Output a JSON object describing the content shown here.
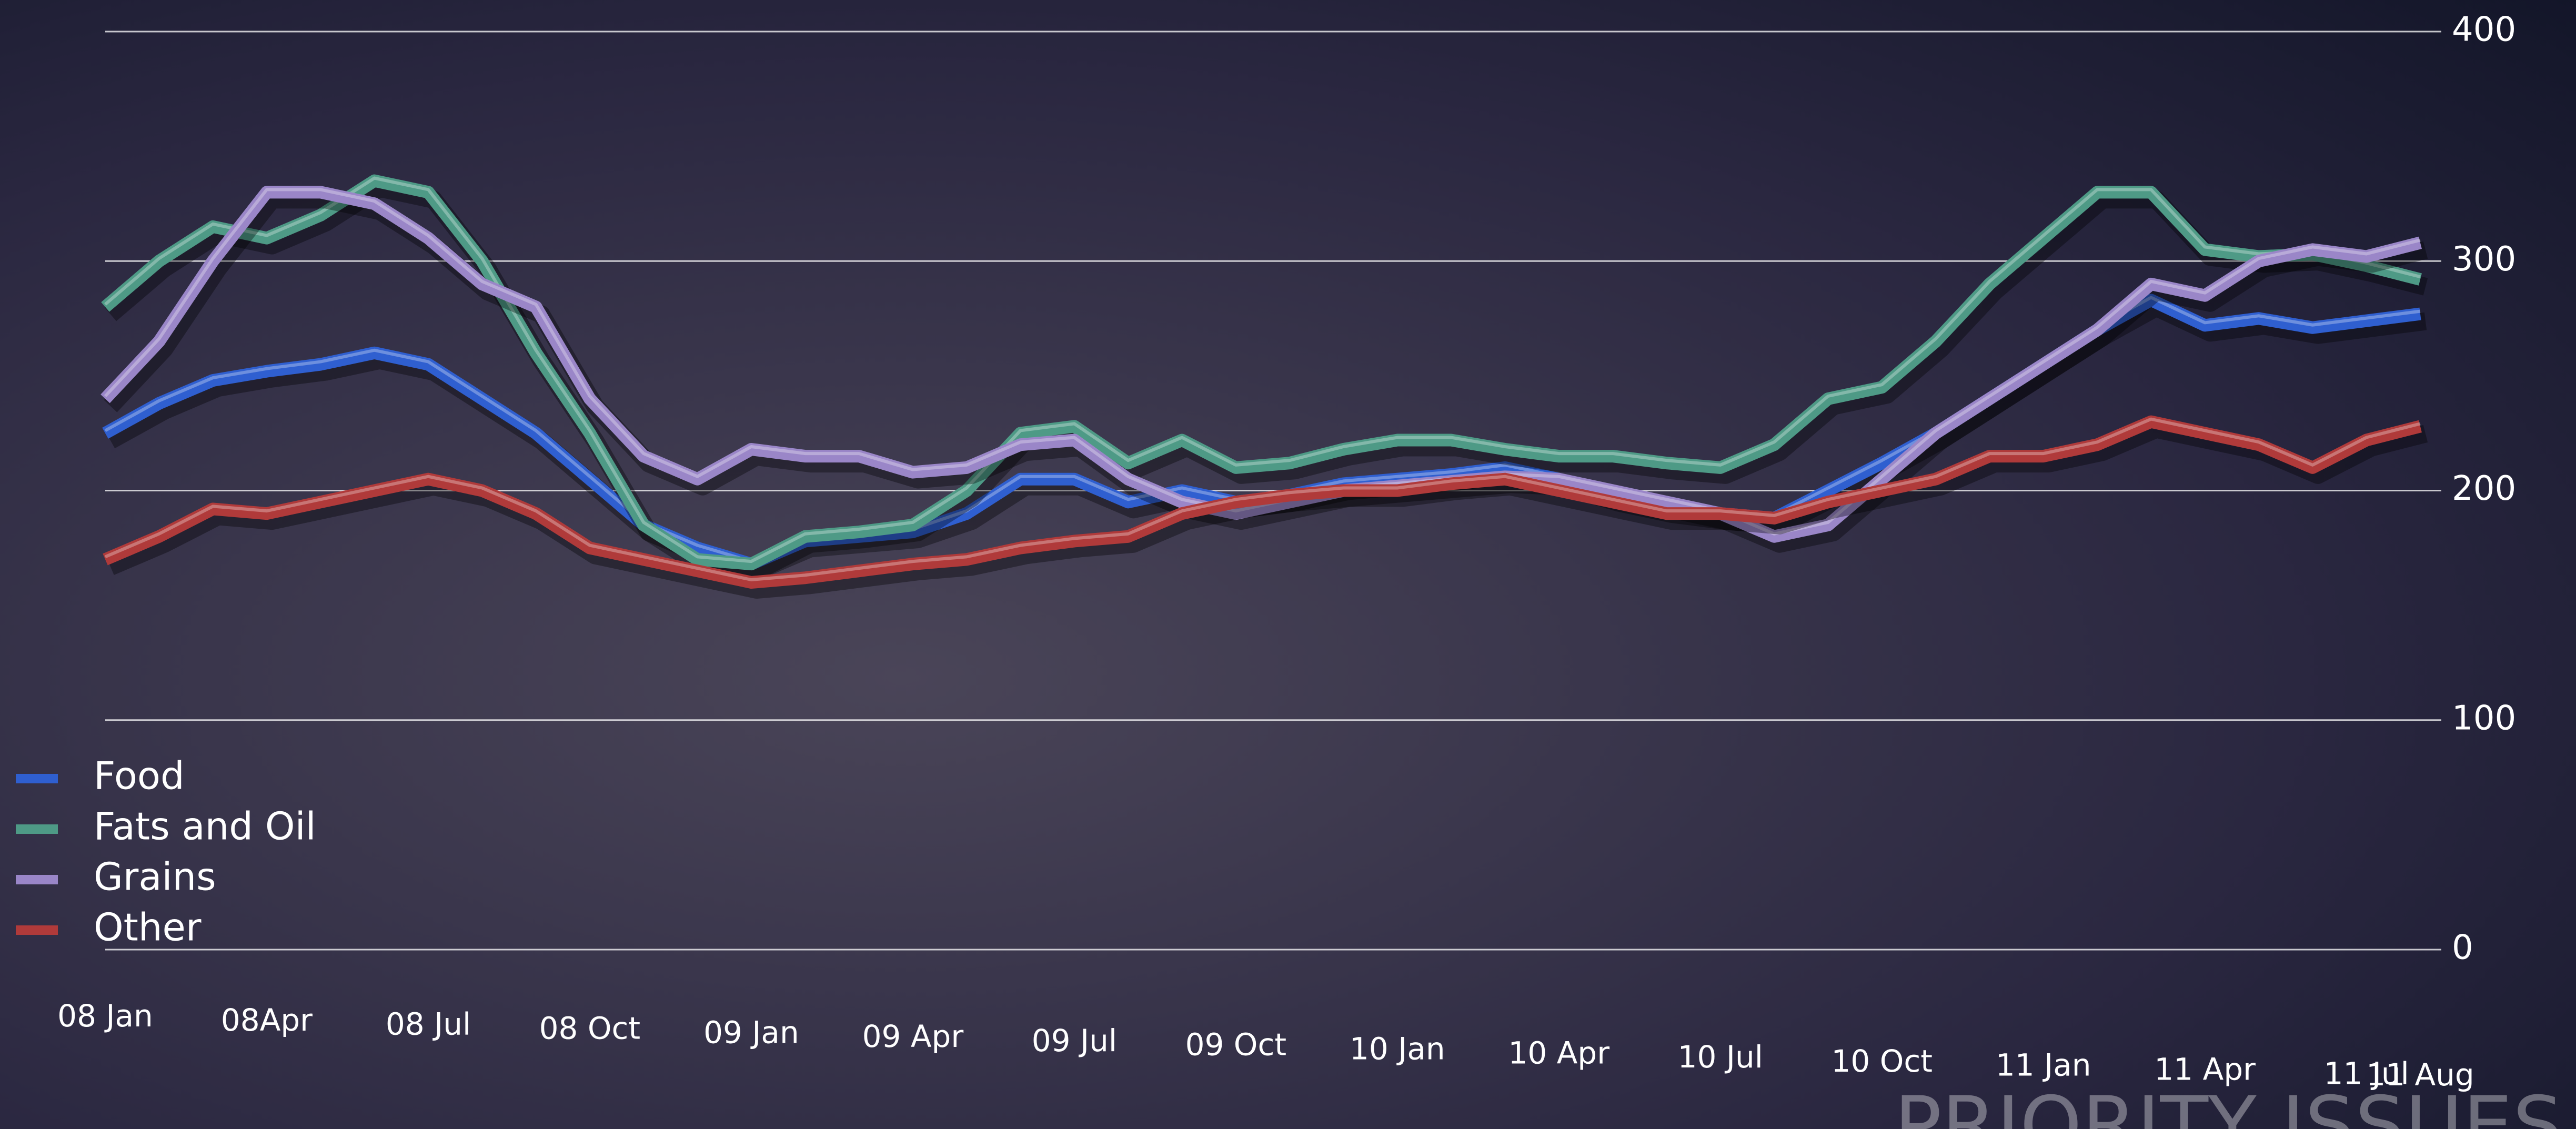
{
  "chart_data": {
    "type": "line",
    "categories": [
      "08 Jan",
      null,
      null,
      "08Apr",
      null,
      null,
      "08 Jul",
      null,
      null,
      "08 Oct",
      null,
      null,
      "09 Jan",
      null,
      null,
      "09 Apr",
      null,
      null,
      "09 Jul",
      null,
      null,
      "09 Oct",
      null,
      null,
      "10 Jan",
      null,
      null,
      "10 Apr",
      null,
      null,
      "10 Jul",
      null,
      null,
      "10 Oct",
      null,
      null,
      "11 Jan",
      null,
      null,
      "11 Apr",
      null,
      null,
      "11 Jul",
      "11 Aug"
    ],
    "series": [
      {
        "name": "Food",
        "color": "#2f5fd0",
        "values": [
          225,
          238,
          248,
          252,
          255,
          260,
          255,
          240,
          225,
          205,
          185,
          175,
          168,
          178,
          180,
          182,
          190,
          205,
          205,
          195,
          200,
          195,
          198,
          203,
          205,
          207,
          210,
          205,
          198,
          193,
          190,
          188,
          200,
          212,
          225,
          240,
          255,
          270,
          283,
          272,
          275,
          271,
          274,
          277
        ]
      },
      {
        "name": "Fats and Oil",
        "color": "#4e9a86",
        "values": [
          280,
          300,
          315,
          310,
          320,
          335,
          330,
          300,
          260,
          225,
          185,
          170,
          168,
          180,
          182,
          185,
          200,
          225,
          228,
          212,
          222,
          210,
          212,
          218,
          222,
          222,
          218,
          215,
          215,
          212,
          210,
          220,
          240,
          245,
          265,
          290,
          310,
          330,
          330,
          305,
          302,
          303,
          298,
          292
        ]
      },
      {
        "name": "Grains",
        "color": "#9a86c8",
        "values": [
          240,
          265,
          300,
          330,
          330,
          325,
          310,
          290,
          280,
          240,
          215,
          205,
          218,
          215,
          215,
          208,
          210,
          220,
          222,
          205,
          195,
          190,
          195,
          200,
          202,
          204,
          206,
          205,
          200,
          195,
          190,
          180,
          185,
          205,
          225,
          240,
          255,
          270,
          290,
          285,
          300,
          305,
          302,
          308
        ]
      },
      {
        "name": "Other",
        "color": "#b03a3a",
        "values": [
          170,
          180,
          192,
          190,
          195,
          200,
          205,
          200,
          190,
          175,
          170,
          165,
          160,
          162,
          165,
          168,
          170,
          175,
          178,
          180,
          190,
          195,
          198,
          200,
          200,
          203,
          205,
          200,
          195,
          190,
          190,
          188,
          195,
          200,
          205,
          215,
          215,
          220,
          230,
          225,
          220,
          210,
          222,
          228
        ]
      }
    ],
    "ylim": [
      0,
      400
    ],
    "yticks": [
      0,
      100,
      200,
      300,
      400
    ],
    "grid": true,
    "legend": "bottom-left",
    "footer": "PRIORITY ISSUES"
  }
}
